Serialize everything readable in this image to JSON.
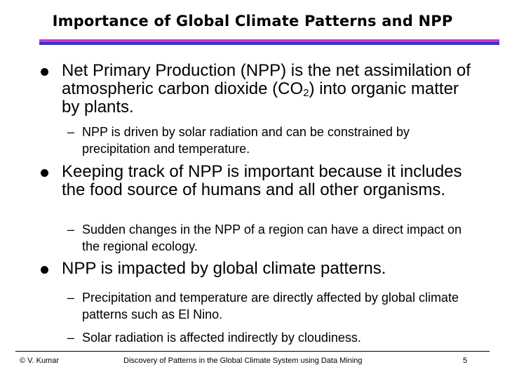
{
  "slide": {
    "title": "Importance of Global Climate Patterns and NPP",
    "bullets": [
      {
        "text_before": "Net Primary Production (NPP) is the net assimilation of atmospheric carbon dioxide (CO",
        "subscript": "2",
        "text_after": ") into organic matter by plants.",
        "subbullets": [
          "NPP is driven by solar radiation and can be constrained by precipitation and temperature."
        ]
      },
      {
        "text": "Keeping track of NPP is important because it includes the food source of humans and all other organisms.",
        "subbullets": [
          "Sudden changes in the NPP of a region can have a direct impact on the regional ecology."
        ]
      },
      {
        "text": "NPP is impacted by global climate patterns.",
        "subbullets": [
          "Precipitation and temperature are directly affected by global climate patterns such as El Nino.",
          "Solar radiation is affected indirectly by cloudiness."
        ]
      }
    ],
    "dash": "–"
  },
  "footer": {
    "author": "© V. Kumar",
    "presentation": "Discovery of Patterns in the Global Climate System using Data Mining",
    "page_number": "5"
  },
  "colors": {
    "rule_top": "#cc33cc",
    "rule_bottom": "#3333cc"
  }
}
